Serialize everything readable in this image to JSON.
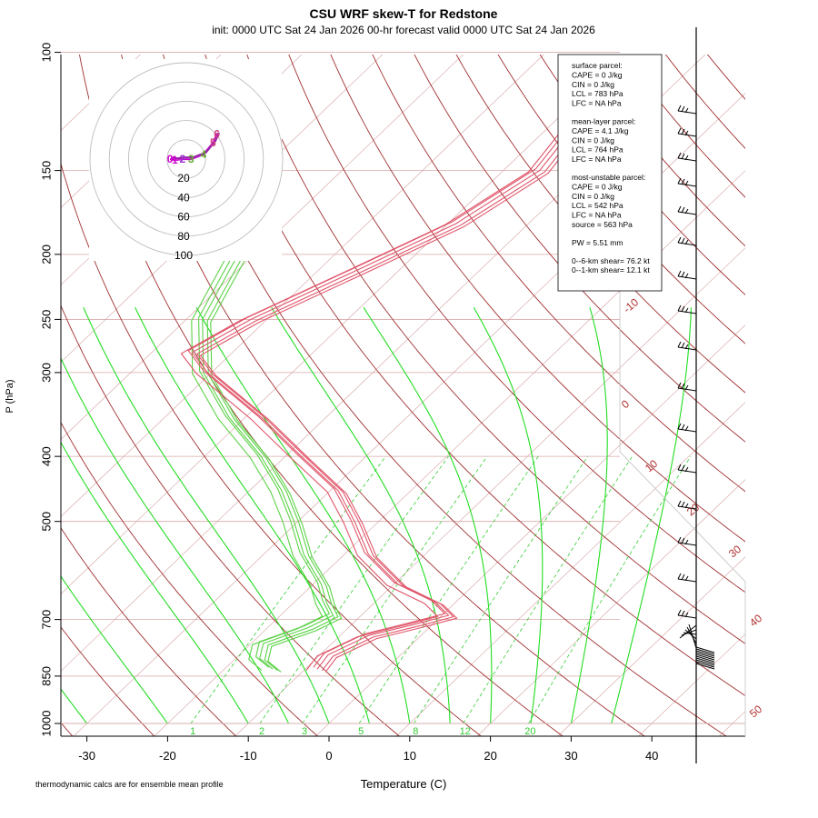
{
  "chart_data": {
    "type": "line",
    "title": "CSU WRF skew-T for Redstone",
    "subtitle": "init: 0000 UTC Sat 24 Jan 2026    00-hr forecast valid 0000 UTC Sat 24 Jan 2026",
    "xlabel": "Temperature (C)",
    "ylabel": "P (hPa)",
    "footnote": "thermodynamic calcs are for ensemble mean profile",
    "x_ticks": [
      "-30",
      "-20",
      "-10",
      "0",
      "10",
      "20",
      "30",
      "40"
    ],
    "y_ticks": [
      "100",
      "150",
      "200",
      "250",
      "300",
      "400",
      "500",
      "700",
      "850",
      "1000"
    ],
    "y_scale": "log",
    "xlim": [
      -33,
      47
    ],
    "ylim": [
      1050,
      100
    ],
    "colors": {
      "temperature": "#e0566a",
      "dewpoint": "#5bd246",
      "dry_adiabat": "#a03030",
      "moist_adiabat": "#22dd22",
      "mixing_ratio": "#33cc33",
      "isotherm": "#d4a0a0",
      "hodograph": "#cc00cc"
    },
    "isotherm_labels": [
      "-10",
      "0",
      "10",
      "20",
      "30",
      "40",
      "50"
    ],
    "mixing_ratio_labels": [
      "1",
      "2",
      "3",
      "5",
      "8",
      "12",
      "20"
    ],
    "hodograph_rings": [
      "20",
      "40",
      "60",
      "80",
      "100"
    ],
    "hodograph_point_labels": [
      "0",
      "1",
      "2",
      "3",
      "4",
      "5",
      "6"
    ],
    "temperature_profile": [
      {
        "p": 120,
        "t": -47.5
      },
      {
        "p": 150,
        "t": -45.5
      },
      {
        "p": 180,
        "t": -49.0
      },
      {
        "p": 210,
        "t": -55.0
      },
      {
        "p": 250,
        "t": -62.0
      },
      {
        "p": 280,
        "t": -65.0
      },
      {
        "p": 300,
        "t": -60.5
      },
      {
        "p": 350,
        "t": -48.0
      },
      {
        "p": 400,
        "t": -38.0
      },
      {
        "p": 450,
        "t": -29.0
      },
      {
        "p": 500,
        "t": -23.0
      },
      {
        "p": 560,
        "t": -17.0
      },
      {
        "p": 620,
        "t": -9.5
      },
      {
        "p": 660,
        "t": -2.5
      },
      {
        "p": 690,
        "t": 0.8
      },
      {
        "p": 710,
        "t": -2.0
      },
      {
        "p": 740,
        "t": -6.5
      },
      {
        "p": 790,
        "t": -9.0
      },
      {
        "p": 830,
        "t": -8.5
      }
    ],
    "dewpoint_profile": [
      {
        "p": 180,
        "t": -75.0
      },
      {
        "p": 200,
        "t": -72.0
      },
      {
        "p": 250,
        "t": -68.0
      },
      {
        "p": 300,
        "t": -61.0
      },
      {
        "p": 350,
        "t": -52.0
      },
      {
        "p": 400,
        "t": -43.0
      },
      {
        "p": 450,
        "t": -36.0
      },
      {
        "p": 500,
        "t": -30.5
      },
      {
        "p": 560,
        "t": -25.0
      },
      {
        "p": 620,
        "t": -19.0
      },
      {
        "p": 660,
        "t": -16.0
      },
      {
        "p": 690,
        "t": -13.5
      },
      {
        "p": 720,
        "t": -15.0
      },
      {
        "p": 760,
        "t": -18.5
      },
      {
        "p": 800,
        "t": -17.0
      },
      {
        "p": 830,
        "t": -14.0
      }
    ],
    "legend": [
      "surface parcel:",
      "CAPE = 0 J/kg",
      "CIN = 0 J/kg",
      "LCL = 783 hPa",
      "LFC = NA hPa",
      "",
      "mean-layer parcel:",
      "CAPE = 4.1 J/kg",
      "CIN = 0 J/kg",
      "LCL = 764 hPa",
      "LFC = NA hPa",
      "",
      "most-unstable parcel:",
      "CAPE = 0 J/kg",
      "CIN = 0 J/kg",
      "LCL = 542 hPa",
      "LFC = NA hPa",
      "source = 563 hPa",
      "",
      "PW =  5.51 mm",
      "",
      "0--6-km shear= 76.2 kt",
      "0--1-km shear= 12.1 kt"
    ],
    "legend_placement": "top-right",
    "grid": true
  }
}
